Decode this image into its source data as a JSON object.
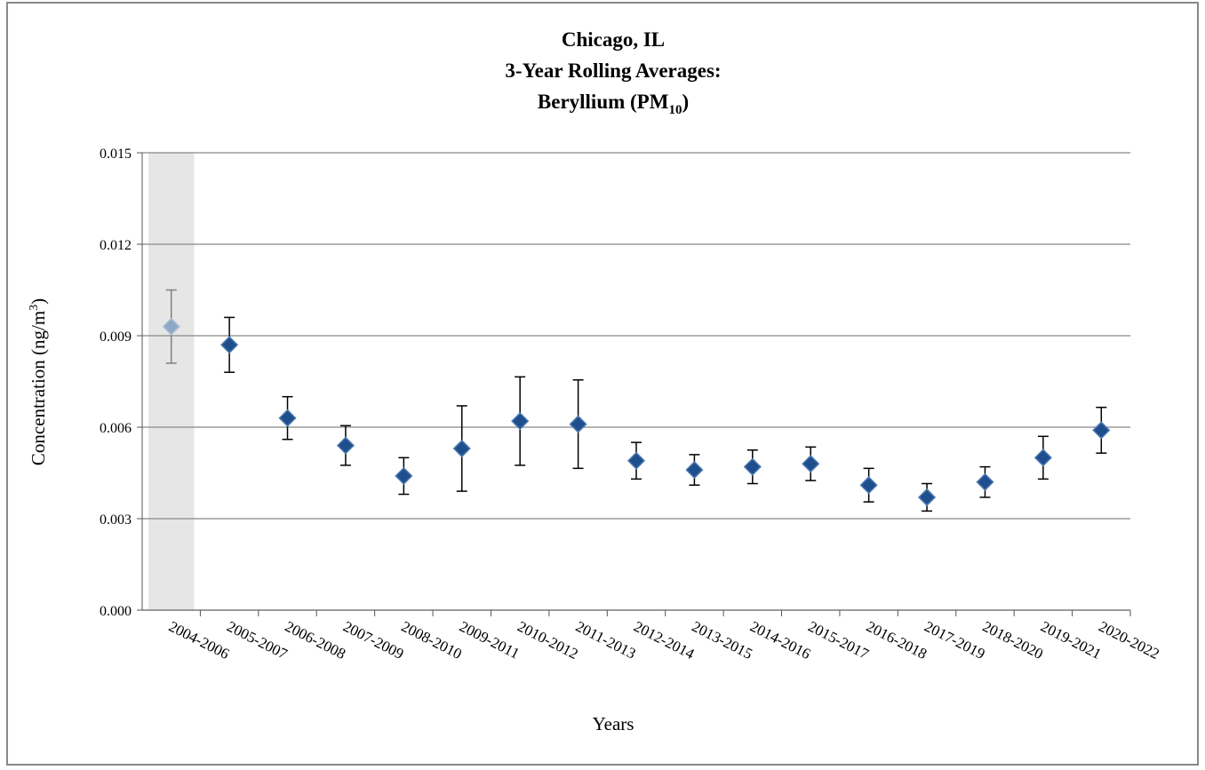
{
  "chart_data": {
    "type": "errorbar",
    "title": {
      "lines": [
        "Chicago, IL",
        "3-Year Rolling Averages:"
      ],
      "last_line": [
        "Beryllium (PM",
        "10",
        ")"
      ]
    },
    "ylabel": [
      "Concentration (ng/m",
      "3",
      ")"
    ],
    "xlabel": "Years",
    "categories": [
      "2004-2006",
      "2005-2007",
      "2006-2008",
      "2007-2009",
      "2008-2010",
      "2009-2011",
      "2010-2012",
      "2011-2013",
      "2012-2014",
      "2013-2015",
      "2014-2016",
      "2015-2017",
      "2016-2018",
      "2017-2019",
      "2018-2020",
      "2019-2021",
      "2020-2022"
    ],
    "values": [
      0.0093,
      0.0087,
      0.0063,
      0.0054,
      0.0044,
      0.0053,
      0.0062,
      0.0061,
      0.0049,
      0.0046,
      0.0047,
      0.0048,
      0.0041,
      0.0037,
      0.0042,
      0.005,
      0.0059
    ],
    "errors": [
      0.0012,
      0.0009,
      0.0007,
      0.00065,
      0.0006,
      0.0014,
      0.00145,
      0.00145,
      0.0006,
      0.0005,
      0.00055,
      0.00055,
      0.00055,
      0.00045,
      0.0005,
      0.0007,
      0.00075
    ],
    "color": "#1f4e8c",
    "highlight": {
      "index": 0,
      "color": "#8ea9c8",
      "band_color": "#e6e6e6",
      "error_color": "#7f7f7f"
    },
    "ylim": [
      0,
      0.015
    ],
    "yticks": [
      {
        "value": 0,
        "label": "0.000"
      },
      0.003,
      0.006,
      0.009,
      0.012,
      0.015
    ],
    "grid": true
  }
}
